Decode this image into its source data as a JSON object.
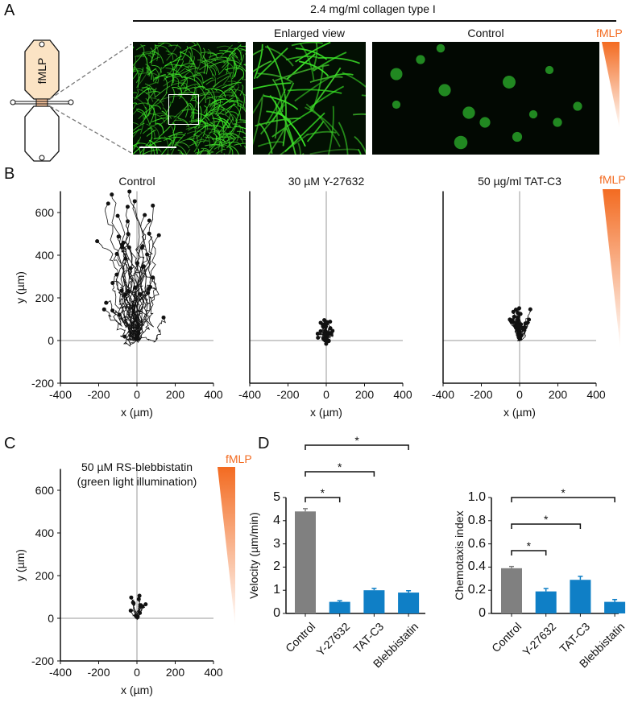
{
  "panels": {
    "a": "A",
    "b": "B",
    "c": "C",
    "d": "D"
  },
  "panel_a": {
    "header": "2.4 mg/ml collagen type I",
    "enlarged_title": "Enlarged view",
    "control_title": "Control",
    "chamber_label": "fMLP",
    "gradient_label": "fMLP"
  },
  "gradient_label": "fMLP",
  "colors": {
    "gradient": "#f36b21",
    "control_bar": "#808080",
    "treatment_bar": "#0f7fc6",
    "collagen": "#2bd62b"
  },
  "chart_data": [
    {
      "type": "line",
      "title": "Control",
      "xlabel": "x (µm)",
      "ylabel": "y (µm)",
      "xlim": [
        -400,
        400
      ],
      "ylim": [
        -200,
        700
      ],
      "xticks": [
        "-400",
        "-200",
        "0",
        "200",
        "400"
      ],
      "yticks": [
        "-200",
        "0",
        "200",
        "400",
        "600"
      ]
    },
    {
      "type": "line",
      "title": "30 µM Y-27632",
      "xlabel": "x (µm)",
      "xlim": [
        -400,
        400
      ],
      "ylim": [
        -200,
        700
      ],
      "xticks": [
        "-400",
        "-200",
        "0",
        "200",
        "400"
      ]
    },
    {
      "type": "line",
      "title": "50 µg/ml TAT-C3",
      "xlabel": "x (µm)",
      "xlim": [
        -400,
        400
      ],
      "ylim": [
        -200,
        700
      ],
      "xticks": [
        "-400",
        "-200",
        "0",
        "200",
        "400"
      ]
    },
    {
      "type": "line",
      "title": "50 µM RS-blebbistatin",
      "subtitle": "(green light illumination)",
      "xlabel": "x (µm)",
      "ylabel": "y (µm)",
      "xlim": [
        -400,
        400
      ],
      "ylim": [
        -200,
        700
      ],
      "xticks": [
        "-400",
        "-200",
        "0",
        "200",
        "400"
      ],
      "yticks": [
        "-200",
        "0",
        "200",
        "400",
        "600"
      ]
    },
    {
      "type": "bar",
      "ylabel": "Velocity (µm/min)",
      "categories": [
        "Control",
        "Y-27632",
        "TAT-C3",
        "Blebbistatin"
      ],
      "values": [
        4.4,
        0.5,
        1.0,
        0.9
      ],
      "errors": [
        0.12,
        0.05,
        0.08,
        0.08
      ],
      "ylim": [
        0,
        5
      ],
      "yticks": [
        "0",
        "1",
        "2",
        "3",
        "4",
        "5"
      ],
      "significance": [
        "*",
        "*",
        "*"
      ]
    },
    {
      "type": "bar",
      "ylabel": "Chemotaxis index",
      "categories": [
        "Control",
        "Y-27632",
        "TAT-C3",
        "Blebbistatin"
      ],
      "values": [
        0.39,
        0.19,
        0.29,
        0.1
      ],
      "errors": [
        0.015,
        0.025,
        0.03,
        0.02
      ],
      "ylim": [
        0,
        1
      ],
      "yticks": [
        "0",
        "0.2",
        "0.4",
        "0.6",
        "0.8",
        "1.0"
      ],
      "significance": [
        "*",
        "*",
        "*"
      ]
    }
  ]
}
